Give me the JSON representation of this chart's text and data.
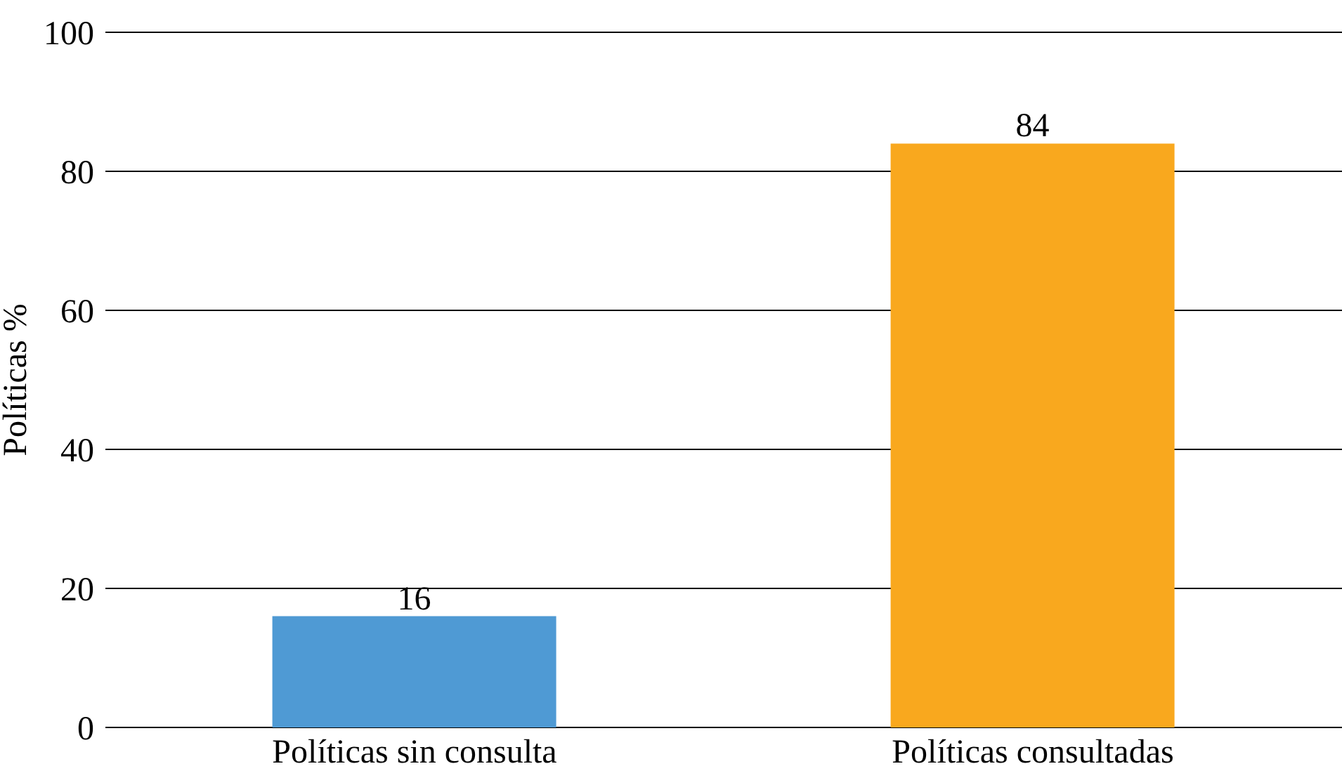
{
  "chart_data": {
    "type": "bar",
    "ylabel": "Políticas %",
    "categories": [
      "Políticas sin consulta",
      "Políticas consultadas"
    ],
    "values": [
      16,
      84
    ],
    "colors": [
      "#4f9ad4",
      "#f9a81e"
    ],
    "ylim": [
      0,
      100
    ],
    "yticks": [
      0,
      20,
      40,
      60,
      80,
      100
    ],
    "grid": "y",
    "data_labels": true
  }
}
